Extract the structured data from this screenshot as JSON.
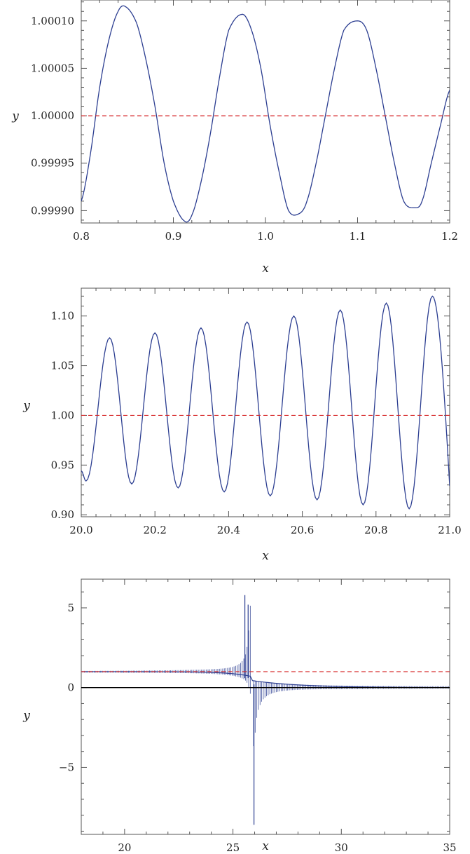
{
  "chart_data": [
    {
      "type": "line",
      "title": "",
      "xlabel": "x",
      "ylabel": "y",
      "xlim": [
        0.8,
        1.2
      ],
      "ylim": [
        0.999887,
        1.000122
      ],
      "xticks": [
        0.8,
        0.9,
        1.0,
        1.1,
        1.2
      ],
      "xtick_labels": [
        "0.8",
        "0.9",
        "1.0",
        "1.1",
        "1.2"
      ],
      "yticks": [
        0.9999,
        0.99995,
        1.0,
        1.00005,
        1.0001
      ],
      "ytick_labels": [
        "0.99990",
        "0.99995",
        "1.00000",
        "1.00005",
        "1.00010"
      ],
      "series": [
        {
          "kind": "curve",
          "color": "#2c3e91",
          "x": [
            0.8,
            0.81,
            0.82,
            0.83,
            0.84,
            0.848,
            0.86,
            0.87,
            0.88,
            0.89,
            0.9,
            0.912,
            0.92,
            0.93,
            0.94,
            0.95,
            0.96,
            0.975,
            0.985,
            0.995,
            1.005,
            1.015,
            1.025,
            1.037,
            1.045,
            1.055,
            1.065,
            1.075,
            1.085,
            1.1,
            1.11,
            1.12,
            1.13,
            1.14,
            1.15,
            1.162,
            1.17,
            1.18,
            1.19,
            1.2
          ],
          "y": [
            0.99991,
            0.99996,
            1.00003,
            1.00008,
            1.00011,
            1.000115,
            1.000098,
            1.00006,
            1.00001,
            0.99995,
            0.99991,
            0.999889,
            0.999895,
            0.99993,
            0.99998,
            1.00004,
            1.00009,
            1.000107,
            1.00009,
            1.00005,
            0.99999,
            0.99994,
            0.9999,
            0.999897,
            0.99991,
            0.99995,
            1.0,
            1.00005,
            1.00009,
            1.0001,
            1.00009,
            1.00005,
            1.0,
            0.99995,
            0.99991,
            0.999903,
            0.99991,
            0.99995,
            0.99999,
            1.000027
          ]
        },
        {
          "kind": "hline",
          "style": "dashed",
          "color": "#d62728",
          "y": 1.0
        }
      ]
    },
    {
      "type": "line",
      "title": "",
      "xlabel": "x",
      "ylabel": "y",
      "xlim": [
        20.0,
        21.0
      ],
      "ylim": [
        0.898,
        1.128
      ],
      "xticks": [
        20.0,
        20.2,
        20.4,
        20.6,
        20.8,
        21.0
      ],
      "xtick_labels": [
        "20.0",
        "20.2",
        "20.4",
        "20.6",
        "20.8",
        "21.0"
      ],
      "yticks": [
        0.9,
        0.95,
        1.0,
        1.05,
        1.1
      ],
      "ytick_labels": [
        "0.90",
        "0.95",
        "1.00",
        "1.05",
        "1.10"
      ],
      "series": [
        {
          "kind": "oscillation",
          "color": "#2c3e91",
          "x_start": 20.0,
          "x_end": 21.0,
          "y_start": 0.944,
          "y_end": 0.929,
          "peaks": [
            {
              "x": 20.077,
              "y": 1.078
            },
            {
              "x": 20.2,
              "y": 1.083
            },
            {
              "x": 20.325,
              "y": 1.088
            },
            {
              "x": 20.45,
              "y": 1.094
            },
            {
              "x": 20.577,
              "y": 1.1
            },
            {
              "x": 20.703,
              "y": 1.106
            },
            {
              "x": 20.828,
              "y": 1.113
            },
            {
              "x": 20.953,
              "y": 1.12
            }
          ],
          "troughs": [
            {
              "x": 20.013,
              "y": 0.934
            },
            {
              "x": 20.137,
              "y": 0.931
            },
            {
              "x": 20.263,
              "y": 0.927
            },
            {
              "x": 20.388,
              "y": 0.923
            },
            {
              "x": 20.513,
              "y": 0.919
            },
            {
              "x": 20.64,
              "y": 0.915
            },
            {
              "x": 20.765,
              "y": 0.91
            },
            {
              "x": 20.89,
              "y": 0.906
            }
          ]
        },
        {
          "kind": "hline",
          "style": "dashed",
          "color": "#d62728",
          "y": 1.0
        }
      ]
    },
    {
      "type": "line",
      "title": "",
      "xlabel": "x",
      "ylabel": "y",
      "xlim": [
        18.0,
        35.0
      ],
      "ylim": [
        -9.2,
        6.8
      ],
      "xticks": [
        20,
        25,
        30,
        35
      ],
      "xtick_labels": [
        "20",
        "25",
        "30",
        "35"
      ],
      "yticks": [
        -5,
        0,
        5
      ],
      "ytick_labels": [
        "−5",
        "0",
        "5"
      ],
      "series": [
        {
          "kind": "spikes",
          "color": "#2c3e91",
          "spike_positions_x": [
            25.55,
            25.7,
            25.97
          ],
          "spike_peaks_y": [
            5.8,
            5.2,
            -8.6
          ]
        },
        {
          "kind": "hline",
          "style": "dashed",
          "color": "#d62728",
          "y": 1.0
        },
        {
          "kind": "hline",
          "style": "solid",
          "color": "#000000",
          "y": 0.0
        }
      ]
    }
  ]
}
